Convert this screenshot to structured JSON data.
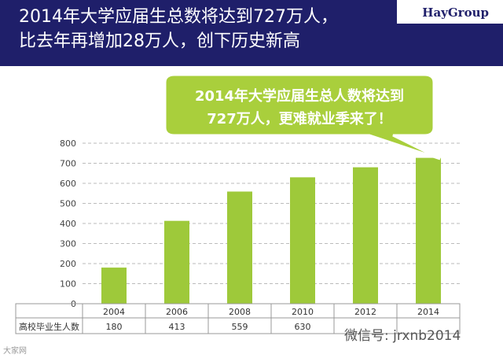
{
  "header": {
    "title_line1": "2014年大学应届生总数将达到727万人，",
    "title_line2": "比去年再增加28万人，创下历史新高",
    "logo": "HayGroup"
  },
  "callout": {
    "line1": "2014年大学应届生总人数将达到",
    "line2": "727万人，更难就业季来了！"
  },
  "colors": {
    "header_bg": "#1f1f6a",
    "bar": "#9ec93a",
    "callout_bg": "#a9cf3c"
  },
  "chart_data": {
    "type": "bar",
    "categories": [
      "2004",
      "2006",
      "2008",
      "2010",
      "2012",
      "2014"
    ],
    "values": [
      180,
      413,
      559,
      630,
      680,
      727
    ],
    "ylim": [
      0,
      800
    ],
    "yticks": [
      0,
      100,
      200,
      300,
      400,
      500,
      600,
      700,
      800
    ],
    "grid": true,
    "table_row_label": "高校毕业生人数",
    "table_values": [
      "180",
      "413",
      "559",
      "630",
      "",
      ""
    ]
  },
  "watermarks": {
    "wechat": "微信号: jrxnb2014",
    "bottom_left": "大家网"
  }
}
